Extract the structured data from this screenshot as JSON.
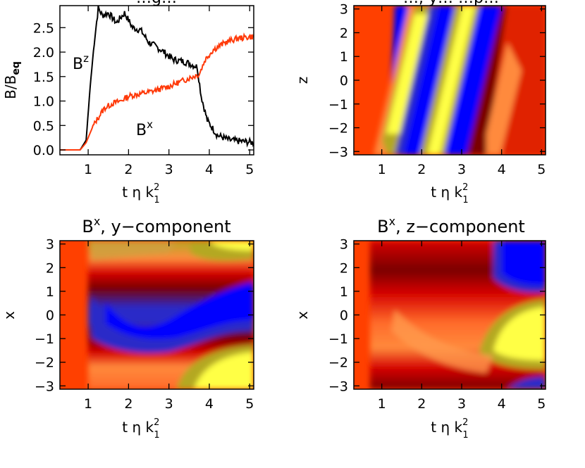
{
  "panels": {
    "top_left": {
      "title": "…g…",
      "ylabel": "B/B",
      "ylabel_sub": "eq",
      "xlabel": "t η k",
      "xlabel_sup": "2",
      "xlabel_sub": "1",
      "curve_labels": {
        "bz_base": "B",
        "bz_sup": "z",
        "bx_base": "B",
        "bx_sup": "x"
      }
    },
    "top_right": {
      "title": "…, y… …p…",
      "ylabel": "z",
      "xlabel": "t η k",
      "xlabel_sup": "2",
      "xlabel_sub": "1"
    },
    "bottom_left": {
      "title_base": "B",
      "title_sup": "x",
      "title_rest": ", y−component",
      "ylabel": "x",
      "xlabel": "t η k",
      "xlabel_sup": "2",
      "xlabel_sub": "1"
    },
    "bottom_right": {
      "title_base": "B",
      "title_sup": "x",
      "title_rest": ", z−component",
      "ylabel": "x",
      "xlabel": "t η k",
      "xlabel_sup": "2",
      "xlabel_sub": "1"
    }
  },
  "colors": {
    "bz_line": "#000000",
    "bx_line": "#ff3a0a",
    "map_background": "#ff4000",
    "map_scale": [
      "#7a0000",
      "#d40000",
      "#ff4000",
      "#ff8a3c",
      "#b4a824",
      "#ffff44",
      "#2a2ac8",
      "#0000ff"
    ]
  },
  "chart_data": [
    {
      "type": "line",
      "panel": "top_left",
      "xlim": [
        0.3,
        5.1
      ],
      "ylim": [
        -0.1,
        2.95
      ],
      "xticks": [
        "1",
        "2",
        "3",
        "4",
        "5"
      ],
      "yticks": [
        "0.0",
        "0.5",
        "1.0",
        "1.5",
        "2.0",
        "2.5"
      ],
      "series": [
        {
          "name": "Bz",
          "x": [
            0.3,
            0.8,
            0.95,
            1.05,
            1.15,
            1.25,
            1.35,
            1.5,
            1.7,
            1.9,
            2.1,
            2.3,
            2.5,
            2.8,
            3.1,
            3.4,
            3.7,
            3.8,
            3.95,
            4.2,
            4.5,
            5.1
          ],
          "y": [
            0.0,
            0.0,
            0.2,
            1.3,
            2.2,
            2.9,
            2.75,
            2.8,
            2.6,
            2.8,
            2.5,
            2.45,
            2.2,
            2.05,
            1.85,
            1.8,
            1.7,
            1.1,
            0.6,
            0.3,
            0.2,
            0.15
          ]
        },
        {
          "name": "Bx",
          "x": [
            0.3,
            0.8,
            0.95,
            1.1,
            1.2,
            1.4,
            1.6,
            1.8,
            2.0,
            2.3,
            2.6,
            3.0,
            3.3,
            3.6,
            3.75,
            3.9,
            4.1,
            4.4,
            4.7,
            5.1
          ],
          "y": [
            0.0,
            0.0,
            0.15,
            0.45,
            0.6,
            0.85,
            0.95,
            1.0,
            1.1,
            1.15,
            1.2,
            1.3,
            1.4,
            1.5,
            1.55,
            1.85,
            2.05,
            2.2,
            2.28,
            2.32
          ]
        }
      ]
    },
    {
      "type": "heatmap",
      "panel": "top_right",
      "xlim": [
        0.3,
        5.1
      ],
      "ylim": [
        -3.14,
        3.14
      ],
      "xticks": [
        "1",
        "2",
        "3",
        "4",
        "5"
      ],
      "yticks": [
        "−3",
        "−2",
        "−1",
        "0",
        "1",
        "2",
        "3"
      ],
      "pattern": "diagonal_bands"
    },
    {
      "type": "heatmap",
      "panel": "bottom_left",
      "xlim": [
        0.3,
        5.1
      ],
      "ylim": [
        -3.14,
        3.14
      ],
      "xticks": [
        "1",
        "2",
        "3",
        "4",
        "5"
      ],
      "yticks": [
        "−3",
        "−2",
        "−1",
        "0",
        "1",
        "2",
        "3"
      ],
      "pattern": "horizontal_dark_band"
    },
    {
      "type": "heatmap",
      "panel": "bottom_right",
      "xlim": [
        0.3,
        5.1
      ],
      "ylim": [
        -3.14,
        3.14
      ],
      "xticks": [
        "1",
        "2",
        "3",
        "4",
        "5"
      ],
      "yticks": [
        "−3",
        "−2",
        "−1",
        "0",
        "1",
        "2",
        "3"
      ],
      "pattern": "dark_top_yellow_bottom"
    }
  ]
}
